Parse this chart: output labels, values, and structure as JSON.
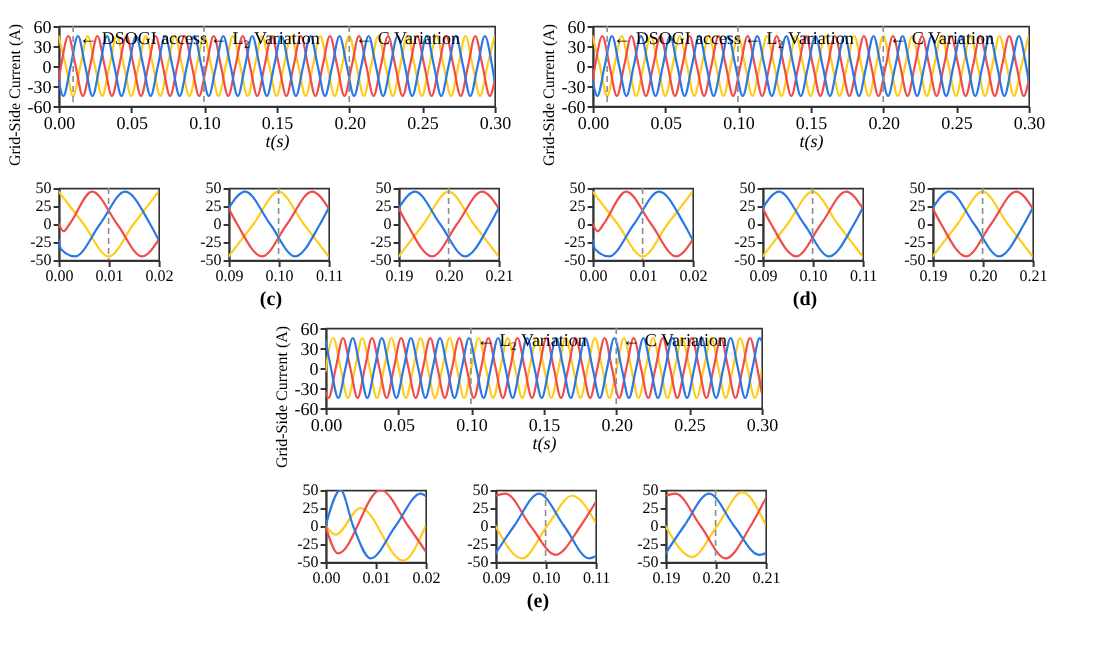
{
  "chart_data": [
    {
      "type": "line",
      "xlabel": "t(s)",
      "ylabel": "Grid-Side Current (A)",
      "xlim": [
        0,
        0.3
      ],
      "ylim": [
        -60,
        60
      ],
      "xticks": [
        {
          "value": 0,
          "label": "0.00"
        },
        0.05,
        {
          "value": 0.1,
          "label": "0.10"
        },
        0.15,
        {
          "value": 0.2,
          "label": "0.20"
        },
        0.25,
        {
          "value": 0.3,
          "label": "0.30"
        }
      ],
      "yticks": [
        -60,
        -30,
        0,
        30,
        60
      ],
      "ref_lines": [
        {
          "axis": "x",
          "value": 0.01,
          "label": "← DSOGI access",
          "color": "#8c8c8c",
          "line_style": "dashed"
        },
        {
          "axis": "x",
          "value": 0.1,
          "label": "← L₂ Variation",
          "color": "#8c8c8c",
          "line_style": "dashed"
        },
        {
          "axis": "x",
          "value": 0.2,
          "label": "← C Variation",
          "color": "#8c8c8c",
          "line_style": "dashed"
        }
      ],
      "series": [
        {
          "color": "#ffcc1a",
          "x": [
            0,
            0.005,
            0.01,
            0.015,
            0.02,
            0.025,
            0.03,
            0.035,
            0.04,
            0.045,
            0.05,
            0.055,
            0.06,
            0.065,
            0.07,
            0.075,
            0.08,
            0.085,
            0.09,
            0.095,
            0.1,
            0.105,
            0.11,
            0.115,
            0.12,
            0.125,
            0.13,
            0.135,
            0.14,
            0.145,
            0.15,
            0.155,
            0.16,
            0.165,
            0.17,
            0.175,
            0.18,
            0.185,
            0.19,
            0.195,
            0.2,
            0.205,
            0.21,
            0.215,
            0.22,
            0.225,
            0.23,
            0.235,
            0.24,
            0.245,
            0.25,
            0.255,
            0.26,
            0.265,
            0.27,
            0.275,
            0.28,
            0.285,
            0.29,
            0.295,
            0.3
          ],
          "values": [
            45,
            0,
            -45,
            0,
            45,
            0,
            -45,
            0,
            45,
            0,
            -45,
            0,
            45,
            0,
            -45,
            0,
            45,
            0,
            -45,
            0,
            45,
            0,
            -45,
            0,
            45,
            0,
            -45,
            0,
            45,
            0,
            -45,
            0,
            45,
            0,
            -45,
            0,
            45,
            0,
            -45,
            0,
            45,
            0,
            -45,
            0,
            45,
            0,
            -45,
            0,
            45,
            0,
            -45,
            0,
            45,
            0,
            -45,
            0,
            45,
            0,
            -45,
            0,
            45
          ]
        },
        {
          "color": "#f24b4b",
          "x": [
            0,
            0.0017,
            0.0067,
            0.0117,
            0.0167,
            0.0217,
            0.0267,
            0.0317,
            0.0367,
            0.0417,
            0.0467,
            0.0517,
            0.0567,
            0.0617,
            0.0667,
            0.0717,
            0.0767,
            0.0817,
            0.0867,
            0.0917,
            0.0967,
            0.1017,
            0.1067,
            0.1117,
            0.1167,
            0.1217,
            0.1267,
            0.1317,
            0.1367,
            0.1417,
            0.1467,
            0.1517,
            0.1567,
            0.1617,
            0.1667,
            0.1717,
            0.1767,
            0.1817,
            0.1867,
            0.1917,
            0.1967,
            0.2017,
            0.2067,
            0.2117,
            0.2167,
            0.2217,
            0.2267,
            0.2317,
            0.2367,
            0.2417,
            0.2467,
            0.2517,
            0.2567,
            0.2617,
            0.2667,
            0.2717,
            0.2767,
            0.2817,
            0.2867,
            0.2917,
            0.2967,
            0.3
          ],
          "values": [
            -22,
            0,
            45,
            0,
            -45,
            0,
            45,
            0,
            -45,
            0,
            45,
            0,
            -45,
            0,
            45,
            0,
            -45,
            0,
            45,
            0,
            -45,
            0,
            45,
            0,
            -45,
            0,
            45,
            0,
            -45,
            0,
            45,
            0,
            -45,
            0,
            45,
            0,
            -45,
            0,
            45,
            0,
            -45,
            0,
            45,
            0,
            -45,
            0,
            45,
            0,
            -45,
            0,
            45,
            0,
            -45,
            0,
            45,
            0,
            -45,
            0,
            45,
            0,
            -45,
            -22
          ]
        },
        {
          "color": "#2a78e4",
          "x": [
            0,
            0.0033,
            0.0083,
            0.0133,
            0.0183,
            0.0233,
            0.0283,
            0.0333,
            0.0383,
            0.0433,
            0.0483,
            0.0533,
            0.0583,
            0.0633,
            0.0683,
            0.0733,
            0.0783,
            0.0833,
            0.0883,
            0.0933,
            0.0983,
            0.1033,
            0.1083,
            0.1133,
            0.1183,
            0.1233,
            0.1283,
            0.1333,
            0.1383,
            0.1433,
            0.1483,
            0.1533,
            0.1583,
            0.1633,
            0.1683,
            0.1733,
            0.1783,
            0.1833,
            0.1883,
            0.1933,
            0.1983,
            0.2033,
            0.2083,
            0.2133,
            0.2183,
            0.2233,
            0.2283,
            0.2333,
            0.2383,
            0.2433,
            0.2483,
            0.2533,
            0.2583,
            0.2633,
            0.2683,
            0.2733,
            0.2783,
            0.2833,
            0.2883,
            0.2933,
            0.2983,
            0.3
          ],
          "values": [
            -22,
            -45,
            0,
            45,
            0,
            -45,
            0,
            45,
            0,
            -45,
            0,
            45,
            0,
            -45,
            0,
            45,
            0,
            -45,
            0,
            45,
            0,
            -45,
            0,
            45,
            0,
            -45,
            0,
            45,
            0,
            -45,
            0,
            45,
            0,
            -45,
            0,
            45,
            0,
            -45,
            0,
            45,
            0,
            -45,
            0,
            45,
            0,
            -45,
            0,
            45,
            0,
            -45,
            0,
            45,
            0,
            -45,
            0,
            45,
            0,
            -45,
            0,
            45,
            0,
            -22
          ]
        }
      ]
    },
    {
      "type": "line",
      "xlabel": "t(s)",
      "ylabel": "Grid-Side Current (A)",
      "xlim": [
        0,
        0.3
      ],
      "ylim": [
        -60,
        60
      ],
      "xticks": [
        {
          "value": 0,
          "label": "0.00"
        },
        0.05,
        {
          "value": 0.1,
          "label": "0.10"
        },
        0.15,
        {
          "value": 0.2,
          "label": "0.20"
        },
        0.25,
        {
          "value": 0.3,
          "label": "0.30"
        }
      ],
      "yticks": [
        -60,
        -30,
        0,
        30,
        60
      ],
      "ref_lines": [
        {
          "axis": "x",
          "value": 0.01,
          "label": "← DSOGI access",
          "color": "#8c8c8c",
          "line_style": "dashed"
        },
        {
          "axis": "x",
          "value": 0.1,
          "label": "← L₂ Variation",
          "color": "#8c8c8c",
          "line_style": "dashed"
        },
        {
          "axis": "x",
          "value": 0.2,
          "label": "← C Variation",
          "color": "#8c8c8c",
          "line_style": "dashed"
        }
      ],
      "series": [
        {
          "color": "#ffcc1a",
          "x": [
            0,
            0.005,
            0.01,
            0.015,
            0.02,
            0.025,
            0.03,
            0.035,
            0.04,
            0.045,
            0.05,
            0.055,
            0.06,
            0.065,
            0.07,
            0.075,
            0.08,
            0.085,
            0.09,
            0.095,
            0.1,
            0.105,
            0.11,
            0.115,
            0.12,
            0.125,
            0.13,
            0.135,
            0.14,
            0.145,
            0.15,
            0.155,
            0.16,
            0.165,
            0.17,
            0.175,
            0.18,
            0.185,
            0.19,
            0.195,
            0.2,
            0.205,
            0.21,
            0.215,
            0.22,
            0.225,
            0.23,
            0.235,
            0.24,
            0.245,
            0.25,
            0.255,
            0.26,
            0.265,
            0.27,
            0.275,
            0.28,
            0.285,
            0.29,
            0.295,
            0.3
          ],
          "values": [
            45,
            0,
            -45,
            0,
            45,
            0,
            -45,
            0,
            45,
            0,
            -45,
            0,
            45,
            0,
            -45,
            0,
            45,
            0,
            -45,
            0,
            45,
            0,
            -45,
            0,
            45,
            0,
            -45,
            0,
            45,
            0,
            -45,
            0,
            45,
            0,
            -45,
            0,
            45,
            0,
            -45,
            0,
            45,
            0,
            -45,
            0,
            45,
            0,
            -45,
            0,
            45,
            0,
            -45,
            0,
            45,
            0,
            -45,
            0,
            45,
            0,
            -45,
            0,
            45
          ]
        },
        {
          "color": "#f24b4b",
          "x": [
            0,
            0.0017,
            0.0067,
            0.0117,
            0.0167,
            0.0217,
            0.0267,
            0.0317,
            0.0367,
            0.0417,
            0.0467,
            0.0517,
            0.0567,
            0.0617,
            0.0667,
            0.0717,
            0.0767,
            0.0817,
            0.0867,
            0.0917,
            0.0967,
            0.1017,
            0.1067,
            0.1117,
            0.1167,
            0.1217,
            0.1267,
            0.1317,
            0.1367,
            0.1417,
            0.1467,
            0.1517,
            0.1567,
            0.1617,
            0.1667,
            0.1717,
            0.1767,
            0.1817,
            0.1867,
            0.1917,
            0.1967,
            0.2017,
            0.2067,
            0.2117,
            0.2167,
            0.2217,
            0.2267,
            0.2317,
            0.2367,
            0.2417,
            0.2467,
            0.2517,
            0.2567,
            0.2617,
            0.2667,
            0.2717,
            0.2767,
            0.2817,
            0.2867,
            0.2917,
            0.2967,
            0.3
          ],
          "values": [
            -22,
            0,
            45,
            0,
            -45,
            0,
            45,
            0,
            -45,
            0,
            45,
            0,
            -45,
            0,
            45,
            0,
            -45,
            0,
            45,
            0,
            -45,
            0,
            45,
            0,
            -45,
            0,
            45,
            0,
            -45,
            0,
            45,
            0,
            -45,
            0,
            45,
            0,
            -45,
            0,
            45,
            0,
            -45,
            0,
            45,
            0,
            -45,
            0,
            45,
            0,
            -45,
            0,
            45,
            0,
            -45,
            0,
            45,
            0,
            -45,
            0,
            45,
            0,
            -45,
            -22
          ]
        },
        {
          "color": "#2a78e4",
          "x": [
            0,
            0.0033,
            0.0083,
            0.0133,
            0.0183,
            0.0233,
            0.0283,
            0.0333,
            0.0383,
            0.0433,
            0.0483,
            0.0533,
            0.0583,
            0.0633,
            0.0683,
            0.0733,
            0.0783,
            0.0833,
            0.0883,
            0.0933,
            0.0983,
            0.1033,
            0.1083,
            0.1133,
            0.1183,
            0.1233,
            0.1283,
            0.1333,
            0.1383,
            0.1433,
            0.1483,
            0.1533,
            0.1583,
            0.1633,
            0.1683,
            0.1733,
            0.1783,
            0.1833,
            0.1883,
            0.1933,
            0.1983,
            0.2033,
            0.2083,
            0.2133,
            0.2183,
            0.2233,
            0.2283,
            0.2333,
            0.2383,
            0.2433,
            0.2483,
            0.2533,
            0.2583,
            0.2633,
            0.2683,
            0.2733,
            0.2783,
            0.2833,
            0.2883,
            0.2933,
            0.2983,
            0.3
          ],
          "values": [
            -22,
            -45,
            0,
            45,
            0,
            -45,
            0,
            45,
            0,
            -45,
            0,
            45,
            0,
            -45,
            0,
            45,
            0,
            -45,
            0,
            45,
            0,
            -45,
            0,
            45,
            0,
            -45,
            0,
            45,
            0,
            -45,
            0,
            45,
            0,
            -45,
            0,
            45,
            0,
            -45,
            0,
            45,
            0,
            -45,
            0,
            45,
            0,
            -45,
            0,
            45,
            0,
            -45,
            0,
            45,
            0,
            -45,
            0,
            45,
            0,
            -45,
            0,
            45,
            0,
            -22
          ]
        }
      ]
    },
    {
      "type": "line",
      "xlim": [
        0,
        0.02
      ],
      "ylim": [
        -50,
        50
      ],
      "xticks": [
        {
          "value": 0,
          "label": "0.00"
        },
        0.01,
        0.02
      ],
      "yticks": [
        -50,
        -25,
        0,
        25,
        50
      ],
      "ref_lines": [
        {
          "axis": "x",
          "value": 0.01,
          "color": "#8c8c8c",
          "line_style": "dashed"
        }
      ],
      "series": [
        {
          "color": "#ffcc1a",
          "x": [
            0,
            0.005,
            0.01,
            0.015,
            0.02
          ],
          "values": [
            45,
            0,
            -45,
            0,
            45
          ]
        },
        {
          "color": "#f24b4b",
          "x": [
            0,
            0.001,
            0.0022,
            0.0067,
            0.0117,
            0.0167,
            0.02
          ],
          "values": [
            0,
            -10,
            0,
            45,
            0,
            -45,
            -22
          ]
        },
        {
          "color": "#2a78e4",
          "x": [
            0,
            0.0005,
            0.0033,
            0.0083,
            0.0133,
            0.0183,
            0.02
          ],
          "values": [
            -22,
            -35,
            -45,
            0,
            45,
            0,
            -22
          ]
        }
      ]
    },
    {
      "type": "line",
      "xlim": [
        0.09,
        0.11
      ],
      "ylim": [
        -50,
        50
      ],
      "xticks": [
        0.09,
        {
          "value": 0.1,
          "label": "0.10"
        },
        0.11
      ],
      "yticks": [
        -50,
        -25,
        0,
        25,
        50
      ],
      "ref_lines": [
        {
          "axis": "x",
          "value": 0.1,
          "color": "#8c8c8c",
          "line_style": "dashed"
        }
      ],
      "annotations": [
        "(c)"
      ],
      "series": [
        {
          "color": "#ffcc1a",
          "x": [
            0.09,
            0.095,
            0.1,
            0.105,
            0.11
          ],
          "values": [
            -45,
            0,
            45,
            0,
            -45
          ]
        },
        {
          "color": "#f24b4b",
          "x": [
            0.09,
            0.0917,
            0.0967,
            0.1017,
            0.1067,
            0.11
          ],
          "values": [
            22,
            0,
            -45,
            0,
            45,
            22
          ]
        },
        {
          "color": "#2a78e4",
          "x": [
            0.09,
            0.0933,
            0.0983,
            0.1033,
            0.1083,
            0.11
          ],
          "values": [
            22,
            45,
            0,
            -45,
            0,
            22
          ]
        }
      ]
    },
    {
      "type": "line",
      "xlim": [
        0.19,
        0.21
      ],
      "ylim": [
        -50,
        50
      ],
      "xticks": [
        0.19,
        {
          "value": 0.2,
          "label": "0.20"
        },
        0.21
      ],
      "yticks": [
        -50,
        -25,
        0,
        25,
        50
      ],
      "ref_lines": [
        {
          "axis": "x",
          "value": 0.2,
          "color": "#8c8c8c",
          "line_style": "dashed"
        }
      ],
      "series": [
        {
          "color": "#ffcc1a",
          "x": [
            0.19,
            0.195,
            0.2,
            0.205,
            0.21
          ],
          "values": [
            -45,
            0,
            45,
            0,
            -45
          ]
        },
        {
          "color": "#f24b4b",
          "x": [
            0.19,
            0.1917,
            0.1967,
            0.2017,
            0.2067,
            0.21
          ],
          "values": [
            22,
            0,
            -45,
            0,
            45,
            22
          ]
        },
        {
          "color": "#2a78e4",
          "x": [
            0.19,
            0.1933,
            0.1983,
            0.2033,
            0.2083,
            0.21
          ],
          "values": [
            22,
            45,
            0,
            -45,
            0,
            22
          ]
        }
      ]
    },
    {
      "type": "line",
      "xlim": [
        0,
        0.02
      ],
      "ylim": [
        -50,
        50
      ],
      "xticks": [
        {
          "value": 0,
          "label": "0.00"
        },
        0.01,
        0.02
      ],
      "yticks": [
        -50,
        -25,
        0,
        25,
        50
      ],
      "ref_lines": [
        {
          "axis": "x",
          "value": 0.01,
          "color": "#8c8c8c",
          "line_style": "dashed"
        }
      ],
      "series": [
        {
          "color": "#ffcc1a",
          "x": [
            0,
            0.005,
            0.01,
            0.015,
            0.02
          ],
          "values": [
            45,
            0,
            -45,
            0,
            45
          ]
        },
        {
          "color": "#f24b4b",
          "x": [
            0,
            0.001,
            0.0022,
            0.0067,
            0.0117,
            0.0167,
            0.02
          ],
          "values": [
            0,
            -10,
            0,
            45,
            0,
            -45,
            -22
          ]
        },
        {
          "color": "#2a78e4",
          "x": [
            0,
            0.0005,
            0.0033,
            0.0083,
            0.0133,
            0.0183,
            0.02
          ],
          "values": [
            -22,
            -35,
            -45,
            0,
            45,
            0,
            -22
          ]
        }
      ]
    },
    {
      "type": "line",
      "xlim": [
        0.09,
        0.11
      ],
      "ylim": [
        -50,
        50
      ],
      "xticks": [
        0.09,
        {
          "value": 0.1,
          "label": "0.10"
        },
        0.11
      ],
      "yticks": [
        -50,
        -25,
        0,
        25,
        50
      ],
      "ref_lines": [
        {
          "axis": "x",
          "value": 0.1,
          "color": "#8c8c8c",
          "line_style": "dashed"
        }
      ],
      "annotations": [
        "(d)"
      ],
      "series": [
        {
          "color": "#ffcc1a",
          "x": [
            0.09,
            0.095,
            0.1,
            0.105,
            0.11
          ],
          "values": [
            -45,
            0,
            45,
            0,
            -45
          ]
        },
        {
          "color": "#f24b4b",
          "x": [
            0.09,
            0.0917,
            0.0967,
            0.1017,
            0.1067,
            0.11
          ],
          "values": [
            22,
            0,
            -45,
            0,
            45,
            22
          ]
        },
        {
          "color": "#2a78e4",
          "x": [
            0.09,
            0.0933,
            0.0983,
            0.1033,
            0.1083,
            0.11
          ],
          "values": [
            22,
            45,
            0,
            -45,
            0,
            22
          ]
        }
      ]
    },
    {
      "type": "line",
      "xlim": [
        0.19,
        0.21
      ],
      "ylim": [
        -50,
        50
      ],
      "xticks": [
        0.19,
        {
          "value": 0.2,
          "label": "0.20"
        },
        0.21
      ],
      "yticks": [
        -50,
        -25,
        0,
        25,
        50
      ],
      "ref_lines": [
        {
          "axis": "x",
          "value": 0.2,
          "color": "#8c8c8c",
          "line_style": "dashed"
        }
      ],
      "series": [
        {
          "color": "#ffcc1a",
          "x": [
            0.19,
            0.195,
            0.2,
            0.205,
            0.21
          ],
          "values": [
            -45,
            0,
            45,
            0,
            -45
          ]
        },
        {
          "color": "#f24b4b",
          "x": [
            0.19,
            0.1917,
            0.1967,
            0.2017,
            0.2067,
            0.21
          ],
          "values": [
            22,
            0,
            -45,
            0,
            45,
            22
          ]
        },
        {
          "color": "#2a78e4",
          "x": [
            0.19,
            0.1933,
            0.1983,
            0.2033,
            0.2083,
            0.21
          ],
          "values": [
            22,
            45,
            0,
            -45,
            0,
            22
          ]
        }
      ]
    },
    {
      "type": "line",
      "xlabel": "t(s)",
      "ylabel": "Grid-Side Current (A)",
      "xlim": [
        0,
        0.3
      ],
      "ylim": [
        -60,
        60
      ],
      "xticks": [
        {
          "value": 0,
          "label": "0.00"
        },
        0.05,
        {
          "value": 0.1,
          "label": "0.10"
        },
        0.15,
        {
          "value": 0.2,
          "label": "0.20"
        },
        0.25,
        {
          "value": 0.3,
          "label": "0.30"
        }
      ],
      "yticks": [
        -60,
        -30,
        0,
        30,
        60
      ],
      "ref_lines": [
        {
          "axis": "x",
          "value": 0.1,
          "label": "← L₂ Variation",
          "color": "#8c8c8c",
          "line_style": "dashed"
        },
        {
          "axis": "x",
          "value": 0.2,
          "label": "← C Variation",
          "color": "#8c8c8c",
          "line_style": "dashed"
        }
      ],
      "series": [
        {
          "color": "#ffcc1a",
          "x": [
            0,
            0.0003,
            0.0053,
            0.0103,
            0.0153,
            0.0203,
            0.0253,
            0.0303,
            0.0353,
            0.0403,
            0.0453,
            0.0503,
            0.0553,
            0.0603,
            0.0653,
            0.0703,
            0.0753,
            0.0803,
            0.0853,
            0.0903,
            0.0953,
            0.1003,
            0.1053,
            0.1103,
            0.1153,
            0.1203,
            0.1253,
            0.1303,
            0.1353,
            0.1403,
            0.1453,
            0.1503,
            0.1553,
            0.1603,
            0.1653,
            0.1703,
            0.1753,
            0.1803,
            0.1853,
            0.1903,
            0.1953,
            0.2003,
            0.2053,
            0.2103,
            0.2153,
            0.2203,
            0.2253,
            0.2303,
            0.2353,
            0.2403,
            0.2453,
            0.2503,
            0.2553,
            0.2603,
            0.2653,
            0.2703,
            0.2753,
            0.2803,
            0.2853,
            0.2903,
            0.2953,
            0.3
          ],
          "values": [
            -5,
            0,
            45,
            0,
            -45,
            0,
            45,
            0,
            -45,
            0,
            45,
            0,
            -45,
            0,
            45,
            0,
            -45,
            0,
            45,
            0,
            -45,
            0,
            45,
            0,
            -45,
            0,
            45,
            0,
            -45,
            0,
            45,
            0,
            -45,
            0,
            45,
            0,
            -45,
            0,
            45,
            0,
            -45,
            0,
            45,
            0,
            -45,
            0,
            45,
            0,
            -45,
            0,
            45,
            0,
            -45,
            0,
            45,
            0,
            -45,
            0,
            45,
            0,
            -45,
            -4
          ]
        },
        {
          "color": "#f24b4b",
          "x": [
            0,
            0.002,
            0.007,
            0.012,
            0.017,
            0.022,
            0.027,
            0.032,
            0.037,
            0.042,
            0.047,
            0.052,
            0.057,
            0.062,
            0.067,
            0.072,
            0.077,
            0.082,
            0.087,
            0.092,
            0.097,
            0.102,
            0.107,
            0.112,
            0.117,
            0.122,
            0.127,
            0.132,
            0.137,
            0.142,
            0.147,
            0.152,
            0.157,
            0.162,
            0.167,
            0.172,
            0.177,
            0.182,
            0.187,
            0.192,
            0.197,
            0.202,
            0.207,
            0.212,
            0.217,
            0.222,
            0.227,
            0.232,
            0.237,
            0.242,
            0.247,
            0.252,
            0.257,
            0.262,
            0.267,
            0.272,
            0.277,
            0.282,
            0.287,
            0.292,
            0.297,
            0.3
          ],
          "values": [
            -36,
            -45,
            0,
            45,
            0,
            -45,
            0,
            45,
            0,
            -45,
            0,
            45,
            0,
            -45,
            0,
            45,
            0,
            -45,
            0,
            45,
            0,
            -45,
            0,
            45,
            0,
            -45,
            0,
            45,
            0,
            -45,
            0,
            45,
            0,
            -45,
            0,
            45,
            0,
            -45,
            0,
            45,
            0,
            -45,
            0,
            45,
            0,
            -45,
            0,
            45,
            0,
            -45,
            0,
            45,
            0,
            -45,
            0,
            45,
            0,
            -45,
            0,
            45,
            0,
            -36
          ]
        },
        {
          "color": "#2a78e4",
          "x": [
            0,
            0.0037,
            0.0087,
            0.0137,
            0.0187,
            0.0237,
            0.0287,
            0.0337,
            0.0387,
            0.0437,
            0.0487,
            0.0537,
            0.0587,
            0.0637,
            0.0687,
            0.0737,
            0.0787,
            0.0837,
            0.0887,
            0.0937,
            0.0987,
            0.1037,
            0.1087,
            0.1137,
            0.1187,
            0.1237,
            0.1287,
            0.1337,
            0.1387,
            0.1437,
            0.1487,
            0.1537,
            0.1587,
            0.1637,
            0.1687,
            0.1737,
            0.1787,
            0.1837,
            0.1887,
            0.1937,
            0.1987,
            0.2037,
            0.2087,
            0.2137,
            0.2187,
            0.2237,
            0.2287,
            0.2337,
            0.2387,
            0.2437,
            0.2487,
            0.2537,
            0.2587,
            0.2637,
            0.2687,
            0.2737,
            0.2787,
            0.2837,
            0.2887,
            0.2937,
            0.2987,
            0.3
          ],
          "values": [
            41,
            0,
            -45,
            0,
            45,
            0,
            -45,
            0,
            45,
            0,
            -45,
            0,
            45,
            0,
            -45,
            0,
            45,
            0,
            -45,
            0,
            45,
            0,
            -45,
            0,
            45,
            0,
            -45,
            0,
            45,
            0,
            -45,
            0,
            45,
            0,
            -45,
            0,
            45,
            0,
            -45,
            0,
            45,
            0,
            -45,
            0,
            45,
            0,
            -45,
            0,
            45,
            0,
            -45,
            0,
            45,
            0,
            -45,
            0,
            45,
            0,
            -45,
            0,
            45,
            41
          ]
        }
      ]
    },
    {
      "type": "line",
      "xlim": [
        0,
        0.02
      ],
      "ylim": [
        -50,
        50
      ],
      "xticks": [
        {
          "value": 0,
          "label": "0.00"
        },
        0.01,
        0.02
      ],
      "yticks": [
        -50,
        -25,
        0,
        25,
        50
      ],
      "series": [
        {
          "color": "#ffcc1a",
          "x": [
            0,
            0.002,
            0.007,
            0.0155,
            0.02
          ],
          "values": [
            0,
            -12,
            25,
            -48,
            0
          ]
        },
        {
          "color": "#f24b4b",
          "x": [
            0,
            0.0025,
            0.011,
            0.0165,
            0.02
          ],
          "values": [
            0,
            -38,
            50,
            0,
            -35
          ]
        },
        {
          "color": "#2a78e4",
          "x": [
            0,
            0.003,
            0.0055,
            0.009,
            0.014,
            0.019,
            0.02
          ],
          "values": [
            0,
            50,
            0,
            -45,
            0,
            45,
            42
          ]
        }
      ]
    },
    {
      "type": "line",
      "xlim": [
        0.09,
        0.11
      ],
      "ylim": [
        -50,
        50
      ],
      "xticks": [
        0.09,
        {
          "value": 0.1,
          "label": "0.10"
        },
        0.11
      ],
      "yticks": [
        -50,
        -25,
        0,
        25,
        50
      ],
      "ref_lines": [
        {
          "axis": "x",
          "value": 0.1,
          "color": "#8c8c8c",
          "line_style": "dashed"
        }
      ],
      "annotations": [
        "(e)"
      ],
      "series": [
        {
          "color": "#ffcc1a",
          "x": [
            0.09,
            0.0953,
            0.1003,
            0.1053,
            0.11
          ],
          "values": [
            0,
            -45,
            0,
            42,
            5
          ]
        },
        {
          "color": "#f24b4b",
          "x": [
            0.09,
            0.092,
            0.097,
            0.102,
            0.107,
            0.11
          ],
          "values": [
            42,
            45,
            0,
            -40,
            0,
            33
          ]
        },
        {
          "color": "#2a78e4",
          "x": [
            0.09,
            0.0937,
            0.0987,
            0.1037,
            0.1087,
            0.11
          ],
          "values": [
            -38,
            0,
            45,
            0,
            -45,
            -42
          ]
        }
      ]
    },
    {
      "type": "line",
      "xlim": [
        0.19,
        0.21
      ],
      "ylim": [
        -50,
        50
      ],
      "xticks": [
        0.19,
        {
          "value": 0.2,
          "label": "0.20"
        },
        0.21
      ],
      "yticks": [
        -50,
        -25,
        0,
        25,
        50
      ],
      "ref_lines": [
        {
          "axis": "x",
          "value": 0.2,
          "color": "#8c8c8c",
          "line_style": "dashed"
        }
      ],
      "series": [
        {
          "color": "#ffcc1a",
          "x": [
            0.19,
            0.1953,
            0.2003,
            0.2053,
            0.21
          ],
          "values": [
            0,
            -43,
            0,
            47,
            2
          ]
        },
        {
          "color": "#f24b4b",
          "x": [
            0.19,
            0.192,
            0.197,
            0.202,
            0.207,
            0.21
          ],
          "values": [
            42,
            45,
            0,
            -45,
            0,
            38
          ]
        },
        {
          "color": "#2a78e4",
          "x": [
            0.19,
            0.1937,
            0.1987,
            0.2037,
            0.2087,
            0.21
          ],
          "values": [
            -38,
            0,
            45,
            0,
            -40,
            -38
          ]
        }
      ]
    }
  ]
}
